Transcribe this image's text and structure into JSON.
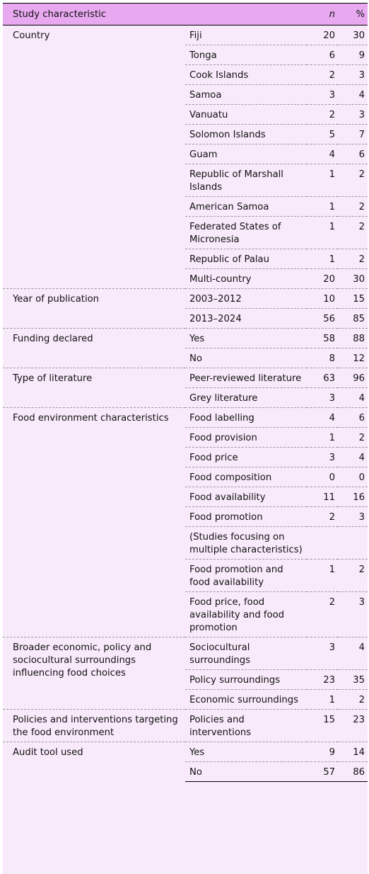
{
  "header": {
    "col1": "Study characteristic",
    "col2": "",
    "col3": "n",
    "col4": "%"
  },
  "groups": [
    {
      "label": "Country",
      "rows": [
        {
          "value": "Fiji",
          "n": "20",
          "pct": "30"
        },
        {
          "value": "Tonga",
          "n": "6",
          "pct": "9"
        },
        {
          "value": "Cook Islands",
          "n": "2",
          "pct": "3"
        },
        {
          "value": "Samoa",
          "n": "3",
          "pct": "4"
        },
        {
          "value": "Vanuatu",
          "n": "2",
          "pct": "3"
        },
        {
          "value": "Solomon Islands",
          "n": "5",
          "pct": "7"
        },
        {
          "value": "Guam",
          "n": "4",
          "pct": "6"
        },
        {
          "value": "Republic of Marshall Islands",
          "n": "1",
          "pct": "2"
        },
        {
          "value": "American Samoa",
          "n": "1",
          "pct": "2"
        },
        {
          "value": "Federated States of Micronesia",
          "n": "1",
          "pct": "2"
        },
        {
          "value": "Republic of Palau",
          "n": "1",
          "pct": "2"
        },
        {
          "value": "Multi-country",
          "n": "20",
          "pct": "30"
        }
      ]
    },
    {
      "label": "Year of publication",
      "rows": [
        {
          "value": "2003–2012",
          "n": "10",
          "pct": "15"
        },
        {
          "value": "2013–2024",
          "n": "56",
          "pct": "85"
        }
      ]
    },
    {
      "label": "Funding declared",
      "rows": [
        {
          "value": "Yes",
          "n": "58",
          "pct": "88"
        },
        {
          "value": "No",
          "n": "8",
          "pct": "12"
        }
      ]
    },
    {
      "label": "Type of literature",
      "rows": [
        {
          "value": "Peer-reviewed literature",
          "n": "63",
          "pct": "96"
        },
        {
          "value": "Grey literature",
          "n": "3",
          "pct": "4"
        }
      ]
    },
    {
      "label": "Food environment characteristics",
      "rows": [
        {
          "value": "Food labelling",
          "n": "4",
          "pct": "6"
        },
        {
          "value": "Food provision",
          "n": "1",
          "pct": "2"
        },
        {
          "value": "Food price",
          "n": "3",
          "pct": "4"
        },
        {
          "value": "Food composition",
          "n": "0",
          "pct": "0"
        },
        {
          "value": "Food availability",
          "n": "11",
          "pct": "16"
        },
        {
          "value": "Food promotion",
          "n": "2",
          "pct": "3"
        },
        {
          "value": "(Studies focusing on multiple characteristics)",
          "n": "",
          "pct": ""
        },
        {
          "value": "Food promotion and food availability",
          "n": "1",
          "pct": "2"
        },
        {
          "value": "Food price, food availability and food promotion",
          "n": "2",
          "pct": "3"
        }
      ]
    },
    {
      "label": "Broader economic, policy and sociocultural surroundings influencing food choices",
      "rows": [
        {
          "value": "Sociocultural surroundings",
          "n": "3",
          "pct": "4"
        },
        {
          "value": "Policy surroundings",
          "n": "23",
          "pct": "35"
        },
        {
          "value": "Economic surroundings",
          "n": "1",
          "pct": "2"
        }
      ]
    },
    {
      "label": "Policies and interventions targeting the food environment",
      "rows": [
        {
          "value": "Policies and interventions",
          "n": "15",
          "pct": "23"
        }
      ]
    },
    {
      "label": "Audit tool used",
      "rows": [
        {
          "value": "Yes",
          "n": "9",
          "pct": "14"
        },
        {
          "value": "No",
          "n": "57",
          "pct": "86"
        }
      ]
    }
  ]
}
